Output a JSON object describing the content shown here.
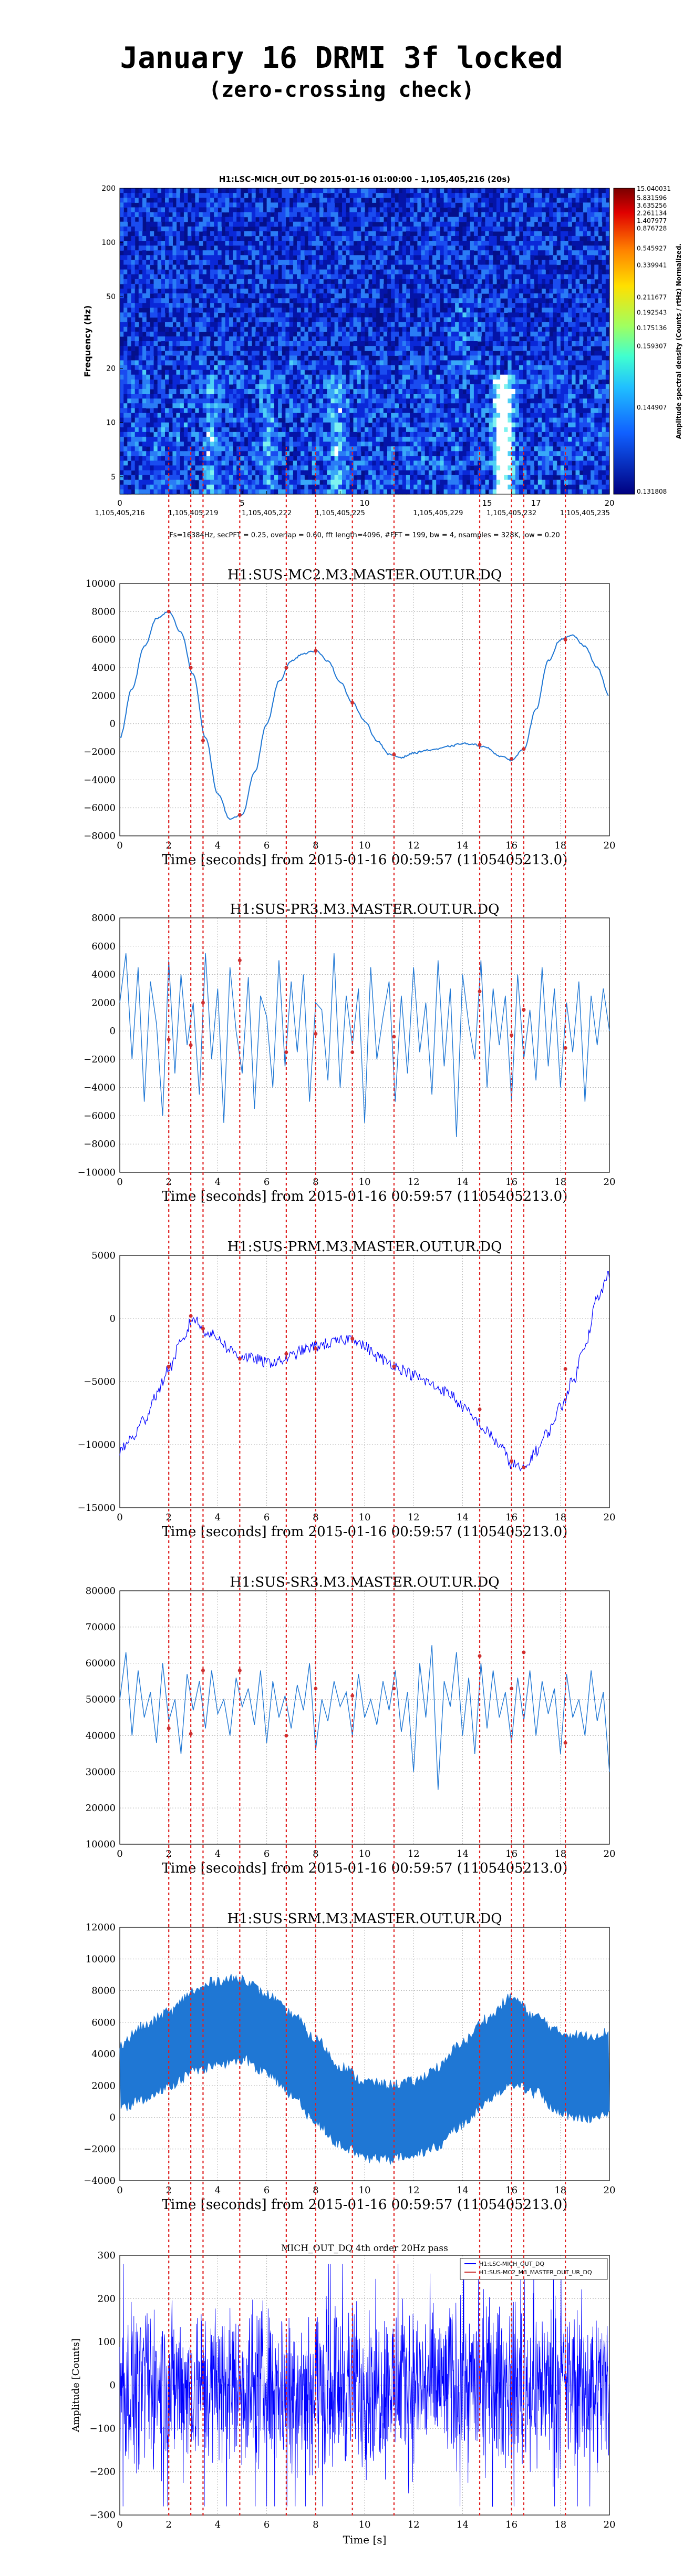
{
  "header": {
    "title": "January 16 DRMI 3f locked",
    "subtitle": "(zero-crossing check)"
  },
  "colors": {
    "marker_line": "#e02020",
    "trace": "#1f77d4",
    "trace_dark": "#0000ff",
    "point": "#cc3333"
  },
  "chart_data": [
    {
      "type": "heatmap",
      "title": "H1:LSC-MICH_OUT_DQ 2015-01-16 01:00:00 - 1,105,405,216 (20s)",
      "ylabel": "Frequency (Hz)",
      "xlabel": "Fs=16384Hz, secPFT = 0.25, overlap = 0.60, fft length=4096, #FFT = 199, bw = 4, nsamples = 328K, low = 0.20",
      "x_ticks": [
        "0",
        "1,105,405,216",
        "1,105,405,219",
        "1,105,405,222",
        "5",
        "1,105,405,225",
        "10",
        "1,105,405,229",
        "1,105,405,232",
        "15",
        "17",
        "1,105,405,235",
        "20"
      ],
      "x_tick_positions": [
        0,
        0,
        3,
        6,
        5,
        9,
        10,
        13,
        16,
        15,
        17,
        19,
        20
      ],
      "y_ticks": [
        "5",
        "10",
        "20",
        "50",
        "100",
        "200"
      ],
      "y_tick_values": [
        5,
        10,
        20,
        50,
        100,
        200
      ],
      "ylim": [
        4,
        200
      ],
      "log_y": true,
      "colorbar_label": "Amplitude spectral density (Counts / rtHz) Normalized.",
      "colorbar_ticks": [
        "15.040031",
        "5.831596",
        "3.635256",
        "2.261134",
        "1.407977",
        "0.876728",
        "0.545927",
        "0.339941",
        "0.211677",
        "0.192543",
        "0.175136",
        "0.159307",
        "0.144907",
        "0.131808"
      ]
    },
    {
      "type": "line",
      "title": "H1:SUS-MC2.M3.MASTER.OUT.UR.DQ",
      "xlabel": "Time [seconds] from 2015-01-16 00:59:57 (1105405213.0)",
      "xlim": [
        0,
        20
      ],
      "ylim": [
        -8000,
        10000
      ],
      "y_ticks": [
        -8000,
        -6000,
        -4000,
        -2000,
        0,
        2000,
        4000,
        6000,
        8000,
        10000
      ],
      "x_ticks": [
        0,
        2,
        4,
        6,
        8,
        10,
        12,
        14,
        16,
        18,
        20
      ],
      "x": [
        0,
        0.5,
        1,
        1.5,
        2,
        2.5,
        3,
        3.5,
        4,
        4.5,
        5,
        5.5,
        6,
        6.5,
        7,
        7.5,
        8,
        8.5,
        9,
        9.5,
        10,
        10.5,
        11,
        11.5,
        12,
        12.5,
        13,
        13.5,
        14,
        14.5,
        15,
        15.5,
        16,
        16.5,
        17,
        17.5,
        18,
        18.5,
        19,
        19.5,
        20
      ],
      "values": [
        -1000,
        2500,
        5500,
        7500,
        8000,
        6500,
        3500,
        -1000,
        -5000,
        -6800,
        -6500,
        -3500,
        0,
        3000,
        4500,
        5000,
        5200,
        4500,
        3000,
        1500,
        200,
        -1200,
        -2200,
        -2400,
        -2100,
        -1900,
        -1800,
        -1600,
        -1400,
        -1500,
        -1700,
        -2300,
        -2600,
        -1800,
        1000,
        4500,
        6000,
        6300,
        5500,
        4000,
        2000
      ],
      "points": [
        [
          2.0,
          8000
        ],
        [
          2.9,
          4000
        ],
        [
          3.4,
          -1200
        ],
        [
          4.9,
          -6500
        ],
        [
          6.8,
          4000
        ],
        [
          8.0,
          5200
        ],
        [
          9.5,
          1500
        ],
        [
          11.2,
          -2200
        ],
        [
          14.7,
          -1500
        ],
        [
          16.0,
          -2500
        ],
        [
          16.5,
          -1800
        ],
        [
          18.2,
          6000
        ]
      ]
    },
    {
      "type": "line",
      "title": "H1:SUS-PR3.M3.MASTER.OUT.UR.DQ",
      "xlabel": "Time [seconds] from 2015-01-16 00:59:57 (1105405213.0)",
      "xlim": [
        0,
        20
      ],
      "ylim": [
        -10000,
        8000
      ],
      "y_ticks": [
        -10000,
        -8000,
        -6000,
        -4000,
        -2000,
        0,
        2000,
        4000,
        6000,
        8000
      ],
      "x_ticks": [
        0,
        2,
        4,
        6,
        8,
        10,
        12,
        14,
        16,
        18,
        20
      ],
      "values": [
        2000,
        5500,
        -2000,
        4500,
        -5000,
        3500,
        500,
        -6000,
        5000,
        -3000,
        4000,
        -1000,
        2000,
        -4500,
        5500,
        -2000,
        3000,
        -6500,
        4500,
        0,
        -3000,
        3800,
        -5500,
        2500,
        1000,
        -4000,
        5000,
        -2500,
        3500,
        -1500,
        4000,
        -5000,
        2000,
        1500,
        -3500,
        5500,
        -4000,
        2500,
        -1000,
        3000,
        -6500,
        4500,
        -2000,
        1000,
        3500,
        -5000,
        2500,
        -3000,
        4500,
        -1500,
        2000,
        -4500,
        5000,
        -2500,
        3000,
        -7500,
        4000,
        500,
        -2000,
        5000,
        -4000,
        3000,
        -1000,
        2500,
        -5000,
        4000,
        -2000,
        1500,
        -3500,
        4500,
        -2500,
        3000,
        -4000,
        2000,
        -1500,
        3500,
        -5000,
        2500,
        -1000,
        3000,
        0
      ],
      "points": [
        [
          2.0,
          -600
        ],
        [
          2.9,
          -1000
        ],
        [
          3.4,
          2000
        ],
        [
          4.9,
          5000
        ],
        [
          6.8,
          -1500
        ],
        [
          8.0,
          -200
        ],
        [
          9.5,
          -1500
        ],
        [
          11.2,
          -400
        ],
        [
          14.7,
          2800
        ],
        [
          16.0,
          -300
        ],
        [
          16.5,
          1500
        ],
        [
          18.2,
          -1200
        ]
      ]
    },
    {
      "type": "line",
      "title": "H1:SUS-PRM.M3.MASTER.OUT.UR.DQ",
      "xlabel": "Time [seconds] from 2015-01-16 00:59:57 (1105405213.0)",
      "xlim": [
        0,
        20
      ],
      "ylim": [
        -15000,
        5000
      ],
      "y_ticks": [
        -15000,
        -10000,
        -5000,
        0,
        5000
      ],
      "x_ticks": [
        0,
        2,
        4,
        6,
        8,
        10,
        12,
        14,
        16,
        18,
        20
      ],
      "x": [
        0,
        0.5,
        1,
        1.5,
        2,
        2.5,
        3,
        3.5,
        4,
        4.5,
        5,
        5.5,
        6,
        6.5,
        7,
        7.5,
        8,
        8.5,
        9,
        9.5,
        10,
        10.5,
        11,
        11.5,
        12,
        12.5,
        13,
        13.5,
        14,
        14.5,
        15,
        15.5,
        16,
        16.5,
        17,
        17.5,
        18,
        18.5,
        19,
        19.5,
        20
      ],
      "values": [
        -10500,
        -9500,
        -8000,
        -6000,
        -4000,
        -2000,
        0,
        -1000,
        -1500,
        -2500,
        -3000,
        -3200,
        -3500,
        -3400,
        -3000,
        -2500,
        -2200,
        -2000,
        -1800,
        -1500,
        -2200,
        -3000,
        -3500,
        -4000,
        -4500,
        -5000,
        -5500,
        -6000,
        -7000,
        -8000,
        -9000,
        -10000,
        -11500,
        -12000,
        -10500,
        -9000,
        -7000,
        -5000,
        -2000,
        1500,
        3500
      ],
      "points": [
        [
          2.0,
          -3800
        ],
        [
          2.9,
          200
        ],
        [
          3.4,
          -800
        ],
        [
          4.9,
          -3200
        ],
        [
          6.8,
          -2800
        ],
        [
          8.0,
          -2400
        ],
        [
          9.5,
          -1600
        ],
        [
          11.2,
          -3800
        ],
        [
          14.7,
          -7200
        ],
        [
          16.0,
          -11300
        ],
        [
          16.5,
          -11800
        ],
        [
          18.2,
          -4000
        ]
      ]
    },
    {
      "type": "line",
      "title": "H1:SUS-SR3.M3.MASTER.OUT.UR.DQ",
      "xlabel": "Time [seconds] from 2015-01-16 00:59:57 (1105405213.0)",
      "xlim": [
        0,
        20
      ],
      "ylim": [
        10000,
        80000
      ],
      "y_ticks": [
        10000,
        20000,
        30000,
        40000,
        50000,
        60000,
        70000,
        80000
      ],
      "x_ticks": [
        0,
        2,
        4,
        6,
        8,
        10,
        12,
        14,
        16,
        18,
        20
      ],
      "values": [
        50000,
        63000,
        40000,
        58000,
        45000,
        52000,
        38000,
        60000,
        44000,
        50000,
        35000,
        57000,
        47000,
        55000,
        42000,
        58000,
        46000,
        50000,
        40000,
        56000,
        48000,
        53000,
        43000,
        58000,
        38000,
        55000,
        45000,
        51000,
        42000,
        54000,
        47000,
        60000,
        36000,
        50000,
        44000,
        55000,
        48000,
        52000,
        40000,
        57000,
        45000,
        50000,
        43000,
        55000,
        47000,
        58000,
        41000,
        52000,
        30000,
        60000,
        45000,
        65000,
        25000,
        55000,
        48000,
        63000,
        40000,
        56000,
        35000,
        60000,
        42000,
        58000,
        45000,
        52000,
        38000,
        56000,
        44000,
        58000,
        40000,
        55000,
        46000,
        53000,
        35000,
        57000,
        45000,
        50000,
        40000,
        58000,
        44000,
        52000,
        30000
      ],
      "points": [
        [
          2.0,
          42000
        ],
        [
          2.9,
          40500
        ],
        [
          3.4,
          58000
        ],
        [
          4.9,
          58000
        ],
        [
          6.8,
          40000
        ],
        [
          8.0,
          53000
        ],
        [
          9.5,
          51000
        ],
        [
          11.2,
          53000
        ],
        [
          14.7,
          62000
        ],
        [
          16.0,
          53000
        ],
        [
          16.5,
          63000
        ],
        [
          18.2,
          38000
        ]
      ]
    },
    {
      "type": "area",
      "title": "H1:SUS-SRM.M3.MASTER.OUT.UR.DQ",
      "xlabel": "Time [seconds] from 2015-01-16 00:59:57 (1105405213.0)",
      "xlim": [
        0,
        20
      ],
      "ylim": [
        -4000,
        12000
      ],
      "y_ticks": [
        -4000,
        -2000,
        0,
        2000,
        4000,
        6000,
        8000,
        10000,
        12000
      ],
      "x_ticks": [
        0,
        2,
        4,
        6,
        8,
        10,
        12,
        14,
        16,
        18,
        20
      ],
      "x": [
        0,
        1,
        2,
        3,
        4,
        5,
        6,
        7,
        8,
        9,
        10,
        11,
        12,
        13,
        14,
        15,
        16,
        17,
        18,
        19,
        20
      ],
      "center": [
        2500,
        3200,
        4200,
        5200,
        6000,
        6200,
        5200,
        3800,
        2000,
        600,
        -300,
        -600,
        -200,
        600,
        1800,
        3500,
        4800,
        3800,
        2600,
        2400,
        2600
      ],
      "upper": [
        4500,
        5600,
        6500,
        7800,
        8500,
        8600,
        7600,
        6400,
        4800,
        3100,
        2100,
        1900,
        2100,
        3000,
        4600,
        6100,
        7400,
        6200,
        5200,
        5000,
        5200
      ],
      "lower": [
        800,
        1200,
        2100,
        3000,
        3500,
        3800,
        3000,
        1600,
        -200,
        -1600,
        -2400,
        -2500,
        -2200,
        -1700,
        -300,
        1100,
        2300,
        1700,
        400,
        100,
        300
      ]
    },
    {
      "type": "line",
      "title": "MICH_OUT_DQ 4th order 20Hz pass",
      "xlabel": "Time [s]",
      "ylabel": "Amplitude [Counts]",
      "xlim": [
        0,
        20
      ],
      "ylim": [
        -300,
        300
      ],
      "y_ticks": [
        -300,
        -200,
        -100,
        0,
        100,
        200,
        300
      ],
      "x_ticks": [
        0,
        2,
        4,
        6,
        8,
        10,
        12,
        14,
        16,
        18,
        20
      ],
      "legend": [
        "H1:LSC-MICH_OUT_DQ",
        "H1:SUS-MC2_M3_MASTER_OUT_UR_DQ"
      ],
      "legend_position": "top-right",
      "envelope": 260
    }
  ],
  "markers": {
    "x_values": [
      2.0,
      2.9,
      3.4,
      4.9,
      6.8,
      8.0,
      9.5,
      11.2,
      14.7,
      16.0,
      16.5,
      18.2
    ]
  }
}
